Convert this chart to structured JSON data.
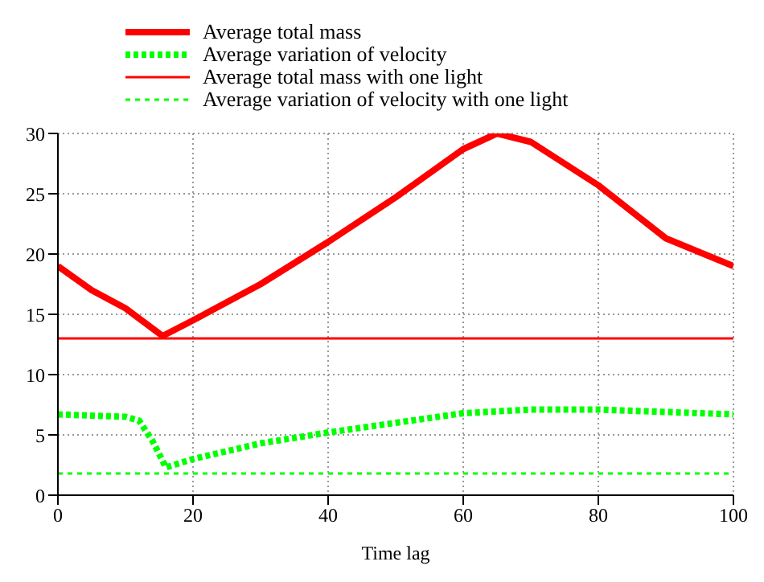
{
  "chart_data": {
    "type": "line",
    "xlabel": "Time lag",
    "xlim": [
      0,
      100
    ],
    "xticks": [
      0,
      20,
      40,
      60,
      80,
      100
    ],
    "ylim": [
      0,
      30
    ],
    "yticks": [
      0,
      5,
      10,
      15,
      20,
      25,
      30
    ],
    "grid": true,
    "legend": "top left",
    "marker": "none",
    "series": [
      {
        "name": "Average total mass",
        "color": "#ff0000",
        "line_style": "solid",
        "x": [
          0,
          5,
          10,
          15.5,
          20,
          30,
          40,
          50,
          60,
          65,
          70,
          80,
          90,
          100
        ],
        "values": [
          19,
          17,
          15.5,
          13.2,
          14.5,
          17.5,
          21,
          24.7,
          28.7,
          30,
          29.3,
          25.7,
          21.3,
          19
        ]
      },
      {
        "name": "Average variation of velocity",
        "color": "#00ff00",
        "line_style": "dotted",
        "x": [
          0,
          10,
          12,
          14,
          16,
          20,
          30,
          40,
          50,
          60,
          70,
          80,
          90,
          100
        ],
        "values": [
          6.7,
          6.5,
          6.2,
          4.5,
          2.3,
          3,
          4.3,
          5.2,
          6,
          6.8,
          7.1,
          7.1,
          6.9,
          6.7
        ]
      },
      {
        "name": "Average total mass with one light",
        "color": "#ff0000",
        "line_style": "solid",
        "x": [
          0,
          100
        ],
        "values": [
          13,
          13
        ]
      },
      {
        "name": "Average variation of velocity with one light",
        "color": "#00ff00",
        "line_style": "dashed",
        "x": [
          0,
          100
        ],
        "values": [
          1.8,
          1.8
        ]
      }
    ]
  }
}
